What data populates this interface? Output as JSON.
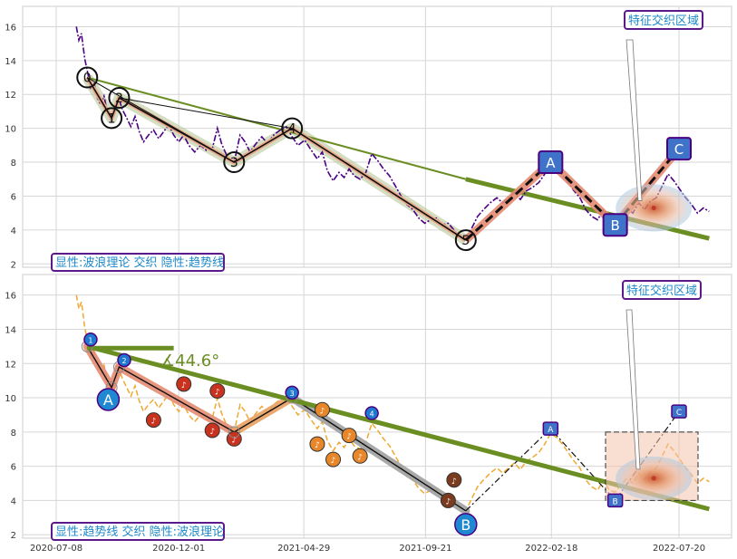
{
  "chart_data": [
    {
      "type": "line",
      "panel": "top",
      "caption": "显性:波浪理论 交织 隐性:趋势线",
      "annotation": "特征交织区域",
      "ylim": [
        1.8,
        17.2
      ],
      "yticks": [
        2,
        4,
        6,
        8,
        10,
        12,
        14,
        16
      ],
      "grid": true,
      "price_series": [
        [
          "2020-08-01",
          16.0
        ],
        [
          "2020-08-04",
          15.2
        ],
        [
          "2020-08-07",
          15.6
        ],
        [
          "2020-08-11",
          14.1
        ],
        [
          "2020-08-14",
          13.4
        ],
        [
          "2020-08-18",
          12.4
        ],
        [
          "2020-08-22",
          12.7
        ],
        [
          "2020-08-26",
          11.8
        ],
        [
          "2020-08-30",
          11.4
        ],
        [
          "2020-09-03",
          11.9
        ],
        [
          "2020-09-07",
          10.9
        ],
        [
          "2020-09-12",
          10.4
        ],
        [
          "2020-09-17",
          11.2
        ],
        [
          "2020-09-21",
          11.7
        ],
        [
          "2020-09-25",
          11.1
        ],
        [
          "2020-09-30",
          10.6
        ],
        [
          "2020-10-05",
          10.1
        ],
        [
          "2020-10-10",
          10.7
        ],
        [
          "2020-10-15",
          9.8
        ],
        [
          "2020-10-20",
          9.2
        ],
        [
          "2020-10-26",
          9.6
        ],
        [
          "2020-11-01",
          9.9
        ],
        [
          "2020-11-07",
          9.4
        ],
        [
          "2020-11-13",
          9.8
        ],
        [
          "2020-11-19",
          10.2
        ],
        [
          "2020-11-25",
          9.6
        ],
        [
          "2020-12-01",
          9.2
        ],
        [
          "2020-12-07",
          9.6
        ],
        [
          "2020-12-13",
          9.0
        ],
        [
          "2020-12-20",
          8.6
        ],
        [
          "2020-12-27",
          9.0
        ],
        [
          "2021-01-03",
          8.7
        ],
        [
          "2021-01-10",
          8.8
        ],
        [
          "2021-01-16",
          10.0
        ],
        [
          "2021-01-21",
          9.1
        ],
        [
          "2021-01-28",
          8.3
        ],
        [
          "2021-02-05",
          8.0
        ],
        [
          "2021-02-12",
          9.6
        ],
        [
          "2021-02-18",
          9.2
        ],
        [
          "2021-02-24",
          8.6
        ],
        [
          "2021-03-03",
          9.1
        ],
        [
          "2021-03-10",
          9.5
        ],
        [
          "2021-03-17",
          9.1
        ],
        [
          "2021-03-24",
          9.6
        ],
        [
          "2021-04-01",
          9.9
        ],
        [
          "2021-04-08",
          10.1
        ],
        [
          "2021-04-15",
          9.5
        ],
        [
          "2021-04-22",
          9.0
        ],
        [
          "2021-04-30",
          9.3
        ],
        [
          "2021-05-08",
          8.7
        ],
        [
          "2021-05-15",
          8.2
        ],
        [
          "2021-05-21",
          8.6
        ],
        [
          "2021-05-27",
          7.5
        ],
        [
          "2021-06-03",
          6.9
        ],
        [
          "2021-06-10",
          7.4
        ],
        [
          "2021-06-16",
          7.1
        ],
        [
          "2021-06-22",
          7.6
        ],
        [
          "2021-06-28",
          7.2
        ],
        [
          "2021-07-05",
          7.0
        ],
        [
          "2021-07-12",
          7.4
        ],
        [
          "2021-07-19",
          8.5
        ],
        [
          "2021-07-26",
          8.1
        ],
        [
          "2021-08-02",
          7.6
        ],
        [
          "2021-08-09",
          7.2
        ],
        [
          "2021-08-16",
          6.6
        ],
        [
          "2021-08-23",
          6.0
        ],
        [
          "2021-08-30",
          5.5
        ],
        [
          "2021-09-06",
          5.2
        ],
        [
          "2021-09-13",
          4.7
        ],
        [
          "2021-09-20",
          4.4
        ],
        [
          "2021-09-27",
          4.6
        ],
        [
          "2021-10-04",
          4.7
        ],
        [
          "2021-10-11",
          4.3
        ],
        [
          "2021-10-18",
          4.4
        ],
        [
          "2021-10-25",
          4.0
        ],
        [
          "2021-11-01",
          3.6
        ],
        [
          "2021-11-08",
          3.4
        ],
        [
          "2021-11-15",
          4.1
        ],
        [
          "2021-11-22",
          4.8
        ],
        [
          "2021-11-29",
          5.2
        ],
        [
          "2021-12-07",
          5.6
        ],
        [
          "2021-12-15",
          5.9
        ],
        [
          "2021-12-22",
          5.6
        ],
        [
          "2021-12-29",
          5.9
        ],
        [
          "2022-01-05",
          6.2
        ],
        [
          "2022-01-12",
          5.8
        ],
        [
          "2022-01-19",
          6.3
        ],
        [
          "2022-01-26",
          6.5
        ],
        [
          "2022-02-03",
          6.8
        ],
        [
          "2022-02-10",
          7.3
        ],
        [
          "2022-02-17",
          7.9
        ],
        [
          "2022-02-24",
          7.7
        ],
        [
          "2022-03-03",
          7.3
        ],
        [
          "2022-03-10",
          6.8
        ],
        [
          "2022-03-17",
          6.3
        ],
        [
          "2022-03-24",
          5.9
        ],
        [
          "2022-03-31",
          5.2
        ],
        [
          "2022-04-07",
          4.8
        ],
        [
          "2022-04-14",
          4.6
        ],
        [
          "2022-04-21",
          5.2
        ],
        [
          "2022-04-28",
          4.6
        ],
        [
          "2022-05-05",
          4.5
        ],
        [
          "2022-05-12",
          4.9
        ],
        [
          "2022-05-19",
          5.3
        ],
        [
          "2022-05-26",
          5.0
        ],
        [
          "2022-06-02",
          5.6
        ],
        [
          "2022-06-09",
          5.2
        ],
        [
          "2022-06-16",
          5.7
        ],
        [
          "2022-06-23",
          5.9
        ],
        [
          "2022-06-30",
          6.6
        ],
        [
          "2022-07-07",
          7.3
        ],
        [
          "2022-07-14",
          6.9
        ],
        [
          "2022-07-21",
          6.4
        ],
        [
          "2022-07-28",
          5.9
        ],
        [
          "2022-08-04",
          5.5
        ],
        [
          "2022-08-11",
          5.0
        ],
        [
          "2022-08-18",
          5.3
        ],
        [
          "2022-08-25",
          5.1
        ]
      ],
      "wave_points": [
        {
          "label": "0",
          "date": "2020-08-14",
          "value": 13.0
        },
        {
          "label": "1",
          "date": "2020-09-12",
          "value": 10.6
        },
        {
          "label": "2",
          "date": "2020-09-21",
          "value": 11.8
        },
        {
          "label": "3",
          "date": "2021-02-05",
          "value": 8.0
        },
        {
          "label": "4",
          "date": "2021-04-15",
          "value": 10.0
        },
        {
          "label": "5",
          "date": "2021-11-08",
          "value": 3.4
        }
      ],
      "abc_points": [
        {
          "label": "A",
          "date": "2022-02-17",
          "value": 8.0
        },
        {
          "label": "B",
          "date": "2022-05-05",
          "value": 4.3
        },
        {
          "label": "C",
          "date": "2022-07-20",
          "value": 8.8
        }
      ],
      "trend_lines": [
        {
          "from": [
            "2020-08-14",
            13.0
          ],
          "to": [
            "2021-11-08",
            7.0
          ]
        },
        {
          "from": [
            "2021-11-08",
            7.0
          ],
          "to": [
            "2022-08-25",
            3.5
          ]
        }
      ],
      "channel_lines": [
        {
          "from": [
            "2020-08-14",
            13.0
          ],
          "to": [
            "2021-02-05",
            8.0
          ]
        },
        {
          "from": [
            "2020-09-21",
            11.8
          ],
          "to": [
            "2021-04-15",
            10.0
          ]
        },
        {
          "from": [
            "2021-04-15",
            10.0
          ],
          "to": [
            "2021-11-08",
            3.4
          ]
        }
      ],
      "highlight": {
        "date": "2022-06-20",
        "value": 5.3
      }
    },
    {
      "type": "line",
      "panel": "bottom",
      "caption": "显性:趋势线 交织 隐性:波浪理论",
      "annotation": "特征交织区域",
      "angle_label": "∡44.6°",
      "ylim": [
        1.8,
        17.2
      ],
      "yticks": [
        2,
        4,
        6,
        8,
        10,
        12,
        14,
        16
      ],
      "xticks": [
        "2020-07-08",
        "2020-12-01",
        "2021-04-29",
        "2021-09-21",
        "2022-02-18",
        "2022-07-20"
      ],
      "grid": true,
      "wave_points": [
        {
          "label": "0",
          "date": "2020-08-14",
          "value": 13.0
        },
        {
          "label": "1",
          "date": "2020-09-12",
          "value": 10.6
        },
        {
          "label": "2",
          "date": "2020-09-21",
          "value": 11.8
        },
        {
          "label": "3",
          "date": "2021-02-05",
          "value": 8.0
        },
        {
          "label": "4",
          "date": "2021-04-15",
          "value": 10.0
        },
        {
          "label": "5",
          "date": "2021-11-08",
          "value": 3.4
        }
      ],
      "markers": [
        {
          "label": "1",
          "date": "2020-08-18",
          "value": 13.4
        },
        {
          "label": "2",
          "date": "2020-09-27",
          "value": 12.2
        },
        {
          "label": "3",
          "date": "2021-04-15",
          "value": 10.3
        },
        {
          "label": "4",
          "date": "2021-07-19",
          "value": 9.1
        },
        {
          "label": "A",
          "date": "2022-02-17",
          "value": 8.2
        },
        {
          "label": "B",
          "date": "2022-05-05",
          "value": 4.0
        },
        {
          "label": "C",
          "date": "2022-07-20",
          "value": 9.2
        }
      ],
      "big_labels": [
        {
          "label": "A",
          "date": "2020-09-08",
          "value": 9.9
        },
        {
          "label": "B",
          "date": "2021-11-08",
          "value": 2.6
        }
      ],
      "note_markers": [
        {
          "date": "2020-11-01",
          "value": 8.7,
          "color": "#c8321e"
        },
        {
          "date": "2020-12-07",
          "value": 10.8,
          "color": "#c8321e"
        },
        {
          "date": "2021-01-16",
          "value": 10.4,
          "color": "#c8321e"
        },
        {
          "date": "2021-01-10",
          "value": 8.1,
          "color": "#c8321e"
        },
        {
          "date": "2021-02-05",
          "value": 7.6,
          "color": "#c8321e"
        },
        {
          "date": "2021-05-21",
          "value": 9.3,
          "color": "#e8872a"
        },
        {
          "date": "2021-05-15",
          "value": 7.3,
          "color": "#e8872a"
        },
        {
          "date": "2021-06-03",
          "value": 6.4,
          "color": "#e8872a"
        },
        {
          "date": "2021-06-22",
          "value": 7.8,
          "color": "#e8872a"
        },
        {
          "date": "2021-07-05",
          "value": 6.6,
          "color": "#e8872a"
        },
        {
          "date": "2021-10-18",
          "value": 4.0,
          "color": "#7a3b1e"
        },
        {
          "date": "2021-10-25",
          "value": 5.2,
          "color": "#7a3b1e"
        }
      ],
      "trend_line": {
        "from": [
          "2020-08-14",
          13.0
        ],
        "to": [
          "2022-08-25",
          3.5
        ]
      },
      "flat_line": {
        "from": [
          "2020-08-14",
          12.9
        ],
        "to": [
          "2020-11-25",
          12.9
        ]
      },
      "highlight": {
        "date": "2022-06-20",
        "value": 5.3
      }
    }
  ]
}
